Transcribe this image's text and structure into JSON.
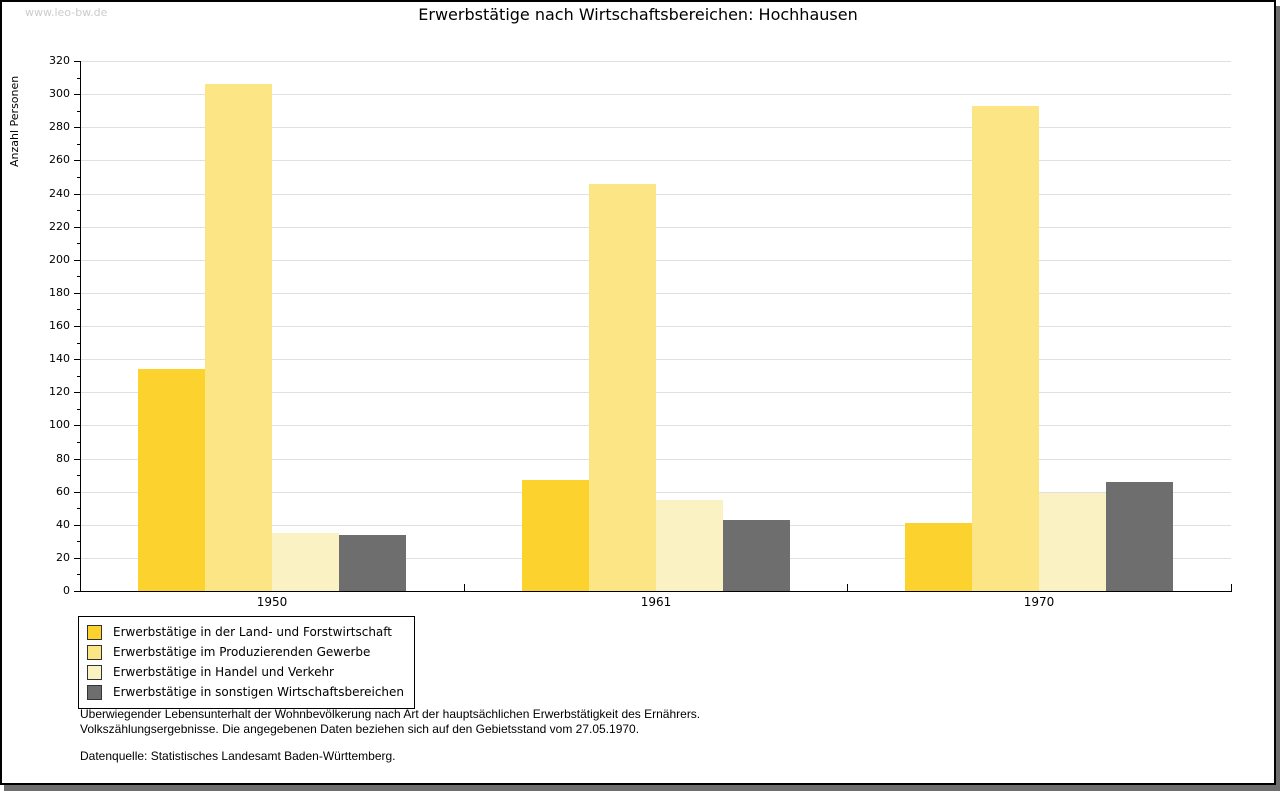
{
  "watermark": "www.leo-bw.de",
  "chart_data": {
    "type": "bar",
    "title": "Erwerbstätige nach Wirtschaftsbereichen: Hochhausen",
    "xlabel": "",
    "ylabel": "Anzahl Personen",
    "ylim": [
      0,
      320
    ],
    "yticks": [
      0,
      20,
      40,
      60,
      80,
      100,
      120,
      140,
      160,
      180,
      200,
      220,
      240,
      260,
      280,
      300,
      320
    ],
    "minor_tick_step": 10,
    "grid": "horizontal",
    "legend_position": "bottom-left",
    "categories": [
      "1950",
      "1961",
      "1970"
    ],
    "series": [
      {
        "name": "Erwerbstätige in der Land- und Forstwirtschaft",
        "color": "#fcd32e",
        "values": [
          134,
          67,
          41
        ]
      },
      {
        "name": "Erwerbstätige im Produzierenden Gewerbe",
        "color": "#fce584",
        "values": [
          306,
          246,
          293
        ]
      },
      {
        "name": "Erwerbstätige in Handel und Verkehr",
        "color": "#fbf2c3",
        "values": [
          35,
          55,
          59
        ]
      },
      {
        "name": "Erwerbstätige in sonstigen Wirtschaftsbereichen",
        "color": "#6e6e6e",
        "values": [
          34,
          43,
          66
        ]
      }
    ]
  },
  "footnotes": {
    "line1": "Überwiegender Lebensunterhalt der Wohnbevölkerung nach Art der hauptsächlichen Erwerbstätigkeit des Ernährers.",
    "line2": "Volkszählungsergebnisse. Die angegebenen Daten beziehen sich auf den Gebietsstand vom 27.05.1970.",
    "source": "Datenquelle: Statistisches Landesamt Baden-Württemberg."
  },
  "colors": {
    "grid": "#e0e0e0",
    "axis": "#000000",
    "watermark": "#cccccc",
    "frame_shadow": "#6e6e6e"
  }
}
